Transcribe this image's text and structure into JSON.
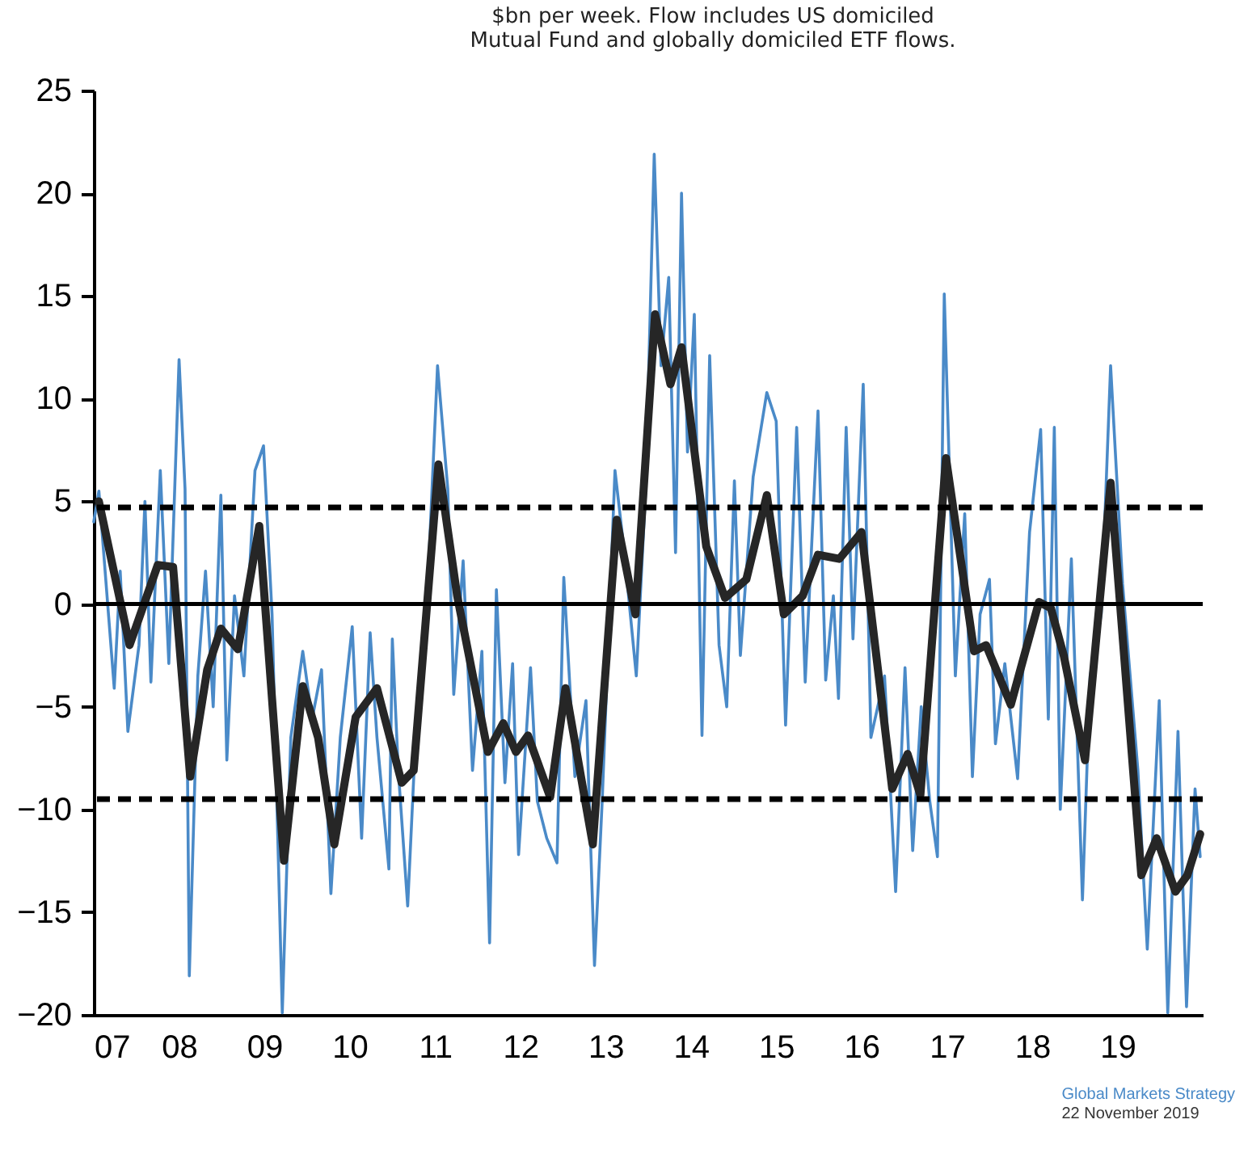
{
  "chart_data": {
    "type": "line",
    "title": "$bn per week. Flow includes US domiciled",
    "subtitle": "Mutual Fund and globally domiciled ETF flows.",
    "annotations": [
      "Global Markets Strategy",
      "22 November 2019"
    ],
    "xlim": [
      2007,
      2020
    ],
    "xticks": [
      {
        "value": 2007,
        "label": "07"
      },
      {
        "value": 2008,
        "label": "08"
      },
      {
        "value": 2009,
        "label": "09"
      },
      {
        "value": 2010,
        "label": "10"
      },
      {
        "value": 2011,
        "label": "11"
      },
      {
        "value": 2012,
        "label": "12"
      },
      {
        "value": 2013,
        "label": "13"
      },
      {
        "value": 2014,
        "label": "14"
      },
      {
        "value": 2015,
        "label": "15"
      },
      {
        "value": 2016,
        "label": "16"
      },
      {
        "value": 2017,
        "label": "17"
      },
      {
        "value": 2018,
        "label": "18"
      },
      {
        "value": 2019,
        "label": "19"
      }
    ],
    "ylim": [
      -20,
      25
    ],
    "yticks": [
      -20,
      -15,
      -10,
      -5,
      0,
      5,
      10,
      15,
      20,
      25
    ],
    "grid": false,
    "marker": "none",
    "line_style": "solid",
    "ref_lines": [
      {
        "axis": "y",
        "value": 0,
        "color": "#000000",
        "line_style": "solid"
      },
      {
        "axis": "y",
        "value": 4.7,
        "color": "#000000",
        "line_style": "dashed"
      },
      {
        "axis": "y",
        "value": -9.5,
        "color": "#000000",
        "line_style": "dashed"
      }
    ],
    "series": [
      {
        "color": "#4a8ac8",
        "x": [
          2007.0,
          2007.06,
          2007.24,
          2007.31,
          2007.4,
          2007.53,
          2007.6,
          2007.67,
          2007.78,
          2007.88,
          2008.0,
          2008.07,
          2008.12,
          2008.22,
          2008.31,
          2008.4,
          2008.49,
          2008.56,
          2008.65,
          2008.76,
          2008.89,
          2008.99,
          2009.09,
          2009.21,
          2009.31,
          2009.45,
          2009.56,
          2009.67,
          2009.78,
          2009.89,
          2010.03,
          2010.14,
          2010.24,
          2010.32,
          2010.46,
          2010.5,
          2010.57,
          2010.68,
          2010.79,
          2010.9,
          2011.03,
          2011.15,
          2011.22,
          2011.33,
          2011.44,
          2011.55,
          2011.64,
          2011.72,
          2011.82,
          2011.91,
          2011.98,
          2012.12,
          2012.2,
          2012.31,
          2012.43,
          2012.51,
          2012.64,
          2012.77,
          2012.87,
          2012.96,
          2013.11,
          2013.22,
          2013.36,
          2013.47,
          2013.57,
          2013.65,
          2013.74,
          2013.82,
          2013.89,
          2013.96,
          2014.04,
          2014.13,
          2014.22,
          2014.33,
          2014.42,
          2014.51,
          2014.58,
          2014.73,
          2014.89,
          2015.0,
          2015.11,
          2015.24,
          2015.34,
          2015.49,
          2015.58,
          2015.67,
          2015.73,
          2015.82,
          2015.9,
          2016.02,
          2016.11,
          2016.27,
          2016.4,
          2016.51,
          2016.6,
          2016.7,
          2016.8,
          2016.89,
          2016.97,
          2017.1,
          2017.21,
          2017.3,
          2017.39,
          2017.5,
          2017.57,
          2017.68,
          2017.83,
          2017.97,
          2018.1,
          2018.19,
          2018.26,
          2018.33,
          2018.46,
          2018.59,
          2018.68,
          2018.81,
          2018.92,
          2019.06,
          2019.24,
          2019.35,
          2019.49,
          2019.59,
          2019.71,
          2019.81,
          2019.91,
          2019.97
        ],
        "values": [
          4.0,
          5.5,
          -4.1,
          1.6,
          -6.2,
          -2.0,
          5.0,
          -3.8,
          6.5,
          -2.9,
          11.9,
          5.6,
          -18.1,
          -3.5,
          1.6,
          -5.0,
          5.3,
          -7.6,
          0.4,
          -3.5,
          6.5,
          7.7,
          -0.5,
          -19.9,
          -6.5,
          -2.3,
          -5.6,
          -3.2,
          -14.1,
          -6.5,
          -1.1,
          -11.4,
          -1.4,
          -6.5,
          -12.9,
          -1.7,
          -8.1,
          -14.7,
          -5.0,
          -0.5,
          11.6,
          5.6,
          -4.4,
          2.1,
          -8.1,
          -2.3,
          -16.5,
          0.7,
          -8.7,
          -2.9,
          -12.2,
          -3.1,
          -9.6,
          -11.4,
          -12.6,
          1.3,
          -8.4,
          -4.7,
          -17.6,
          -9.6,
          6.5,
          2.5,
          -3.5,
          5.6,
          21.9,
          11.6,
          15.9,
          2.5,
          20.0,
          7.4,
          14.1,
          -6.4,
          12.1,
          -2.0,
          -5.0,
          6.0,
          -2.5,
          6.2,
          10.3,
          8.9,
          -5.9,
          8.6,
          -3.8,
          9.4,
          -3.7,
          0.4,
          -4.6,
          8.6,
          -1.7,
          10.7,
          -6.5,
          -3.5,
          -14.0,
          -3.1,
          -12.0,
          -5.0,
          -9.6,
          -12.3,
          15.1,
          -3.5,
          4.4,
          -8.4,
          -0.5,
          1.2,
          -6.8,
          -2.9,
          -8.5,
          3.5,
          8.5,
          -5.6,
          8.6,
          -10.0,
          2.2,
          -14.4,
          -3.5,
          -0.5,
          11.6,
          1.0,
          -8.1,
          -16.8,
          -4.7,
          -19.9,
          -6.2,
          -19.6,
          -9.0,
          -12.3
        ]
      },
      {
        "color": "#262626",
        "x": [
          2007.06,
          2007.42,
          2007.75,
          2007.93,
          2008.13,
          2008.33,
          2008.49,
          2008.69,
          2008.94,
          2009.23,
          2009.45,
          2009.63,
          2009.82,
          2010.07,
          2010.32,
          2010.61,
          2010.75,
          2011.04,
          2011.26,
          2011.62,
          2011.8,
          2011.95,
          2012.09,
          2012.35,
          2012.53,
          2012.85,
          2013.13,
          2013.35,
          2013.58,
          2013.76,
          2013.89,
          2014.18,
          2014.4,
          2014.65,
          2014.89,
          2015.09,
          2015.31,
          2015.49,
          2015.74,
          2016.0,
          2016.36,
          2016.54,
          2016.69,
          2016.99,
          2017.32,
          2017.46,
          2017.75,
          2018.08,
          2018.22,
          2018.37,
          2018.62,
          2018.92,
          2019.28,
          2019.46,
          2019.68,
          2019.82,
          2019.97
        ],
        "values": [
          5.0,
          -2.0,
          1.9,
          1.8,
          -8.4,
          -3.2,
          -1.2,
          -2.2,
          3.8,
          -12.5,
          -4.0,
          -6.5,
          -11.7,
          -5.5,
          -4.1,
          -8.7,
          -8.1,
          6.8,
          0.4,
          -7.2,
          -5.8,
          -7.2,
          -6.4,
          -9.4,
          -4.1,
          -11.7,
          4.1,
          -0.5,
          14.1,
          10.7,
          12.5,
          2.8,
          0.3,
          1.2,
          5.3,
          -0.5,
          0.4,
          2.4,
          2.2,
          3.5,
          -9.0,
          -7.3,
          -9.3,
          7.1,
          -2.3,
          -2.0,
          -4.9,
          0.1,
          -0.2,
          -2.5,
          -7.6,
          5.9,
          -13.2,
          -11.4,
          -14.0,
          -13.2,
          -11.2
        ]
      }
    ]
  }
}
